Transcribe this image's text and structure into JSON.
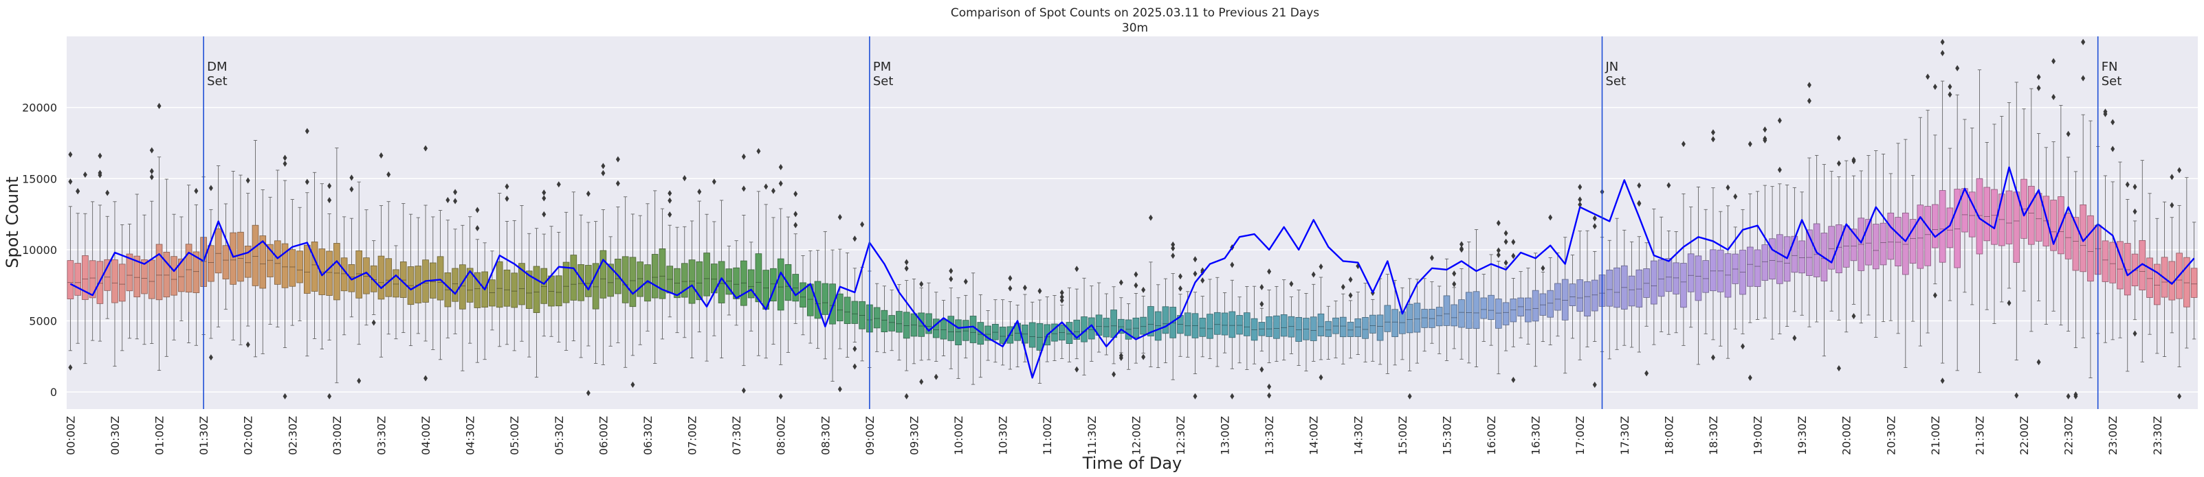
{
  "chart_data": {
    "type": "box",
    "title": "Comparison of Spot Counts on 2025.03.11 to Previous 21 Days",
    "subtitle": "30m",
    "xlabel": "Time of Day",
    "ylabel": "Spot Count",
    "ylim": [
      -1200,
      25000
    ],
    "yticks": [
      0,
      5000,
      10000,
      15000,
      20000
    ],
    "n_categories": 288,
    "category_interval_minutes": 5,
    "xtick_labels": [
      "00:00Z",
      "00:30Z",
      "01:00Z",
      "01:30Z",
      "02:00Z",
      "02:30Z",
      "03:00Z",
      "03:30Z",
      "04:00Z",
      "04:30Z",
      "05:00Z",
      "05:30Z",
      "06:00Z",
      "06:30Z",
      "07:00Z",
      "07:30Z",
      "08:00Z",
      "08:30Z",
      "09:00Z",
      "09:30Z",
      "10:00Z",
      "10:30Z",
      "11:00Z",
      "11:30Z",
      "12:00Z",
      "12:30Z",
      "13:00Z",
      "13:30Z",
      "14:00Z",
      "14:30Z",
      "15:00Z",
      "15:30Z",
      "16:00Z",
      "16:30Z",
      "17:00Z",
      "17:30Z",
      "18:00Z",
      "18:30Z",
      "19:00Z",
      "19:30Z",
      "20:00Z",
      "20:30Z",
      "21:00Z",
      "21:30Z",
      "22:00Z",
      "22:30Z",
      "23:00Z",
      "23:30Z"
    ],
    "median_profile_anchors": [
      [
        0,
        7600
      ],
      [
        15,
        8200
      ],
      [
        20,
        9500
      ],
      [
        30,
        8900
      ],
      [
        42,
        7700
      ],
      [
        54,
        7300
      ],
      [
        66,
        7100
      ],
      [
        72,
        7700
      ],
      [
        84,
        8000
      ],
      [
        96,
        7500
      ],
      [
        102,
        6200
      ],
      [
        108,
        5200
      ],
      [
        114,
        4600
      ],
      [
        120,
        4200
      ],
      [
        132,
        3900
      ],
      [
        138,
        4500
      ],
      [
        150,
        4700
      ],
      [
        162,
        4500
      ],
      [
        174,
        4500
      ],
      [
        186,
        5300
      ],
      [
        198,
        6000
      ],
      [
        210,
        7200
      ],
      [
        222,
        8400
      ],
      [
        234,
        9300
      ],
      [
        246,
        10500
      ],
      [
        258,
        12300
      ],
      [
        264,
        12400
      ],
      [
        270,
        10900
      ],
      [
        276,
        9100
      ],
      [
        282,
        7800
      ],
      [
        287,
        7600
      ]
    ],
    "series": [
      {
        "name": "2025.03.11",
        "color": "#0000ff",
        "anchors": [
          [
            0,
            7600
          ],
          [
            3,
            6800
          ],
          [
            6,
            9800
          ],
          [
            10,
            9000
          ],
          [
            12,
            9700
          ],
          [
            14,
            8500
          ],
          [
            16,
            9800
          ],
          [
            18,
            9200
          ],
          [
            20,
            12000
          ],
          [
            22,
            9500
          ],
          [
            24,
            9800
          ],
          [
            26,
            10600
          ],
          [
            28,
            9400
          ],
          [
            30,
            10200
          ],
          [
            32,
            10500
          ],
          [
            34,
            8200
          ],
          [
            36,
            9200
          ],
          [
            38,
            7900
          ],
          [
            40,
            8400
          ],
          [
            42,
            7300
          ],
          [
            44,
            8200
          ],
          [
            46,
            7200
          ],
          [
            48,
            7800
          ],
          [
            50,
            7900
          ],
          [
            52,
            6900
          ],
          [
            54,
            8500
          ],
          [
            56,
            7200
          ],
          [
            58,
            9600
          ],
          [
            60,
            9000
          ],
          [
            62,
            8200
          ],
          [
            64,
            7600
          ],
          [
            66,
            8800
          ],
          [
            68,
            8700
          ],
          [
            70,
            7200
          ],
          [
            72,
            9300
          ],
          [
            74,
            8200
          ],
          [
            76,
            6900
          ],
          [
            78,
            7800
          ],
          [
            80,
            7200
          ],
          [
            82,
            6800
          ],
          [
            84,
            7500
          ],
          [
            86,
            6000
          ],
          [
            88,
            8000
          ],
          [
            90,
            6600
          ],
          [
            92,
            7200
          ],
          [
            94,
            5800
          ],
          [
            96,
            8400
          ],
          [
            98,
            6800
          ],
          [
            100,
            7600
          ],
          [
            102,
            4600
          ],
          [
            104,
            7400
          ],
          [
            106,
            7000
          ],
          [
            108,
            10500
          ],
          [
            110,
            9000
          ],
          [
            112,
            7000
          ],
          [
            114,
            5600
          ],
          [
            116,
            4300
          ],
          [
            118,
            5200
          ],
          [
            120,
            4500
          ],
          [
            122,
            4600
          ],
          [
            124,
            3800
          ],
          [
            126,
            3200
          ],
          [
            128,
            5000
          ],
          [
            130,
            1000
          ],
          [
            132,
            4000
          ],
          [
            134,
            4900
          ],
          [
            136,
            3800
          ],
          [
            138,
            4700
          ],
          [
            140,
            3200
          ],
          [
            142,
            4400
          ],
          [
            144,
            3700
          ],
          [
            146,
            4200
          ],
          [
            148,
            4600
          ],
          [
            150,
            5300
          ],
          [
            152,
            7700
          ],
          [
            154,
            9000
          ],
          [
            156,
            9400
          ],
          [
            158,
            10900
          ],
          [
            160,
            11100
          ],
          [
            162,
            10000
          ],
          [
            164,
            11600
          ],
          [
            166,
            10000
          ],
          [
            168,
            12100
          ],
          [
            170,
            10200
          ],
          [
            172,
            9200
          ],
          [
            174,
            9100
          ],
          [
            176,
            7000
          ],
          [
            178,
            9200
          ],
          [
            180,
            5500
          ],
          [
            182,
            7600
          ],
          [
            184,
            8700
          ],
          [
            186,
            8600
          ],
          [
            188,
            9200
          ],
          [
            190,
            8500
          ],
          [
            192,
            9000
          ],
          [
            194,
            8600
          ],
          [
            196,
            9800
          ],
          [
            198,
            9400
          ],
          [
            200,
            10300
          ],
          [
            202,
            9000
          ],
          [
            204,
            13000
          ],
          [
            206,
            12500
          ],
          [
            208,
            12000
          ],
          [
            210,
            14900
          ],
          [
            212,
            12300
          ],
          [
            214,
            9600
          ],
          [
            216,
            9200
          ],
          [
            218,
            10200
          ],
          [
            220,
            10900
          ],
          [
            222,
            10600
          ],
          [
            224,
            10000
          ],
          [
            226,
            11400
          ],
          [
            228,
            11700
          ],
          [
            230,
            10000
          ],
          [
            232,
            9400
          ],
          [
            234,
            12100
          ],
          [
            236,
            9800
          ],
          [
            238,
            9100
          ],
          [
            240,
            11800
          ],
          [
            242,
            10500
          ],
          [
            244,
            13000
          ],
          [
            246,
            11600
          ],
          [
            248,
            10600
          ],
          [
            250,
            12300
          ],
          [
            252,
            10900
          ],
          [
            254,
            11700
          ],
          [
            256,
            14300
          ],
          [
            258,
            12200
          ],
          [
            260,
            11500
          ],
          [
            262,
            15800
          ],
          [
            264,
            12400
          ],
          [
            266,
            14200
          ],
          [
            268,
            10400
          ],
          [
            270,
            13000
          ],
          [
            272,
            10600
          ],
          [
            274,
            11800
          ],
          [
            276,
            11000
          ],
          [
            278,
            8200
          ],
          [
            280,
            9000
          ],
          [
            282,
            8400
          ],
          [
            284,
            7600
          ],
          [
            287,
            9400
          ]
        ]
      }
    ],
    "vlines": [
      {
        "x": 18,
        "label": "DM\nSet",
        "color": "#1f4fd6"
      },
      {
        "x": 108,
        "label": "PM\nSet",
        "color": "#1f4fd6"
      },
      {
        "x": 207,
        "label": "JN\nSet",
        "color": "#1f4fd6"
      },
      {
        "x": 274,
        "label": "FN\nSet",
        "color": "#1f4fd6"
      }
    ],
    "style": {
      "background": "#eaeaf2",
      "gridline": "#ffffff",
      "outlier": "#3a3a3a",
      "whisker": "#555555",
      "palette_anchors": [
        "#e8919a",
        "#c69a5c",
        "#8f9b4e",
        "#55a05e",
        "#4da08c",
        "#5aa3b3",
        "#8aa6d8",
        "#b49ae0",
        "#e28ec9",
        "#e8919a"
      ]
    }
  }
}
